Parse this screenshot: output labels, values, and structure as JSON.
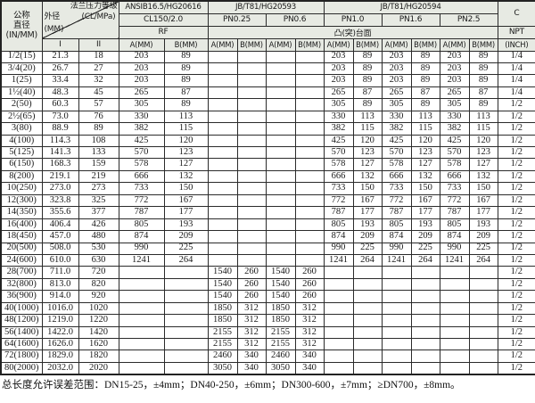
{
  "colors": {
    "header_bg": "#e7eae3",
    "border": "#2b2b2b",
    "text": "#1a1a1a",
    "page_bg": "#ffffff"
  },
  "table": {
    "header": {
      "nominal1": "公称",
      "nominal2": "直径",
      "nominal3": "(IN/MM)",
      "diag_flange": "法兰压力等级",
      "diag_clmpa": "(CL/MPa)",
      "diag_od": "外径",
      "diag_mm": "(MM)",
      "std_ansi": "ANSIB16.5/HG20616",
      "std_hg20593": "JB/T81/HG20593",
      "std_hg20594": "JB/T81/HG20594",
      "col_c": "C",
      "cl_rating": "CL150/2.0",
      "pn025": "PN0.25",
      "pn06": "PN0.6",
      "pn10": "PN1.0",
      "pn16": "PN1.6",
      "pn25": "PN2.5",
      "rf": "RF",
      "raised_face": "凸(突)台面",
      "npt": "NPT",
      "inch": "(INCH)",
      "od_i": "I",
      "od_ii": "II",
      "a_label": "A(MM)",
      "b_label": "B(MM)"
    },
    "rows": [
      [
        "1/2(15)",
        "21.3",
        "18",
        "203",
        "89",
        "",
        "",
        "",
        "",
        "203",
        "89",
        "203",
        "89",
        "203",
        "89",
        "1/4"
      ],
      [
        "3/4(20)",
        "26.7",
        "27",
        "203",
        "89",
        "",
        "",
        "",
        "",
        "203",
        "89",
        "203",
        "89",
        "203",
        "89",
        "1/4"
      ],
      [
        "1(25)",
        "33.4",
        "32",
        "203",
        "89",
        "",
        "",
        "",
        "",
        "203",
        "89",
        "203",
        "89",
        "203",
        "89",
        "1/4"
      ],
      [
        "1½(40)",
        "48.3",
        "45",
        "265",
        "87",
        "",
        "",
        "",
        "",
        "265",
        "87",
        "265",
        "87",
        "265",
        "87",
        "1/4"
      ],
      [
        "2(50)",
        "60.3",
        "57",
        "305",
        "89",
        "",
        "",
        "",
        "",
        "305",
        "89",
        "305",
        "89",
        "305",
        "89",
        "1/2"
      ],
      [
        "2½(65)",
        "73.0",
        "76",
        "330",
        "113",
        "",
        "",
        "",
        "",
        "330",
        "113",
        "330",
        "113",
        "330",
        "113",
        "1/2"
      ],
      [
        "3(80)",
        "88.9",
        "89",
        "382",
        "115",
        "",
        "",
        "",
        "",
        "382",
        "115",
        "382",
        "115",
        "382",
        "115",
        "1/2"
      ],
      [
        "4(100)",
        "114.3",
        "108",
        "425",
        "120",
        "",
        "",
        "",
        "",
        "425",
        "120",
        "425",
        "120",
        "425",
        "120",
        "1/2"
      ],
      [
        "5(125)",
        "141.3",
        "133",
        "570",
        "123",
        "",
        "",
        "",
        "",
        "570",
        "123",
        "570",
        "123",
        "570",
        "123",
        "1/2"
      ],
      [
        "6(150)",
        "168.3",
        "159",
        "578",
        "127",
        "",
        "",
        "",
        "",
        "578",
        "127",
        "578",
        "127",
        "578",
        "127",
        "1/2"
      ],
      [
        "8(200)",
        "219.1",
        "219",
        "666",
        "132",
        "",
        "",
        "",
        "",
        "666",
        "132",
        "666",
        "132",
        "666",
        "132",
        "1/2"
      ],
      [
        "10(250)",
        "273.0",
        "273",
        "733",
        "150",
        "",
        "",
        "",
        "",
        "733",
        "150",
        "733",
        "150",
        "733",
        "150",
        "1/2"
      ],
      [
        "12(300)",
        "323.8",
        "325",
        "772",
        "167",
        "",
        "",
        "",
        "",
        "772",
        "167",
        "772",
        "167",
        "772",
        "167",
        "1/2"
      ],
      [
        "14(350)",
        "355.6",
        "377",
        "787",
        "177",
        "",
        "",
        "",
        "",
        "787",
        "177",
        "787",
        "177",
        "787",
        "177",
        "1/2"
      ],
      [
        "16(400)",
        "406.4",
        "426",
        "805",
        "193",
        "",
        "",
        "",
        "",
        "805",
        "193",
        "805",
        "193",
        "805",
        "193",
        "1/2"
      ],
      [
        "18(450)",
        "457.0",
        "480",
        "874",
        "209",
        "",
        "",
        "",
        "",
        "874",
        "209",
        "874",
        "209",
        "874",
        "209",
        "1/2"
      ],
      [
        "20(500)",
        "508.0",
        "530",
        "990",
        "225",
        "",
        "",
        "",
        "",
        "990",
        "225",
        "990",
        "225",
        "990",
        "225",
        "1/2"
      ],
      [
        "24(600)",
        "610.0",
        "630",
        "1241",
        "264",
        "",
        "",
        "",
        "",
        "1241",
        "264",
        "1241",
        "264",
        "1241",
        "264",
        "1/2"
      ],
      [
        "28(700)",
        "711.0",
        "720",
        "",
        "",
        "1540",
        "260",
        "1540",
        "260",
        "",
        "",
        "",
        "",
        "",
        "",
        "1/2"
      ],
      [
        "32(800)",
        "813.0",
        "820",
        "",
        "",
        "1540",
        "260",
        "1540",
        "260",
        "",
        "",
        "",
        "",
        "",
        "",
        "1/2"
      ],
      [
        "36(900)",
        "914.0",
        "920",
        "",
        "",
        "1540",
        "260",
        "1540",
        "260",
        "",
        "",
        "",
        "",
        "",
        "",
        "1/2"
      ],
      [
        "40(1000)",
        "1016.0",
        "1020",
        "",
        "",
        "1850",
        "312",
        "1850",
        "312",
        "",
        "",
        "",
        "",
        "",
        "",
        "1/2"
      ],
      [
        "48(1200)",
        "1219.0",
        "1220",
        "",
        "",
        "1850",
        "312",
        "1850",
        "312",
        "",
        "",
        "",
        "",
        "",
        "",
        "1/2"
      ],
      [
        "56(1400)",
        "1422.0",
        "1420",
        "",
        "",
        "2155",
        "312",
        "2155",
        "312",
        "",
        "",
        "",
        "",
        "",
        "",
        "1/2"
      ],
      [
        "64(1600)",
        "1626.0",
        "1620",
        "",
        "",
        "2155",
        "312",
        "2155",
        "312",
        "",
        "",
        "",
        "",
        "",
        "",
        "1/2"
      ],
      [
        "72(1800)",
        "1829.0",
        "1820",
        "",
        "",
        "2460",
        "340",
        "2460",
        "340",
        "",
        "",
        "",
        "",
        "",
        "",
        "1/2"
      ],
      [
        "80(2000)",
        "2032.0",
        "2020",
        "",
        "",
        "3050",
        "340",
        "3050",
        "340",
        "",
        "",
        "",
        "",
        "",
        "",
        "1/2"
      ]
    ],
    "footnote": "总长度允许误差范围：DN15-25，±4mm；DN40-250，±6mm；DN300-600，±7mm；≥DN700，±8mm。"
  }
}
